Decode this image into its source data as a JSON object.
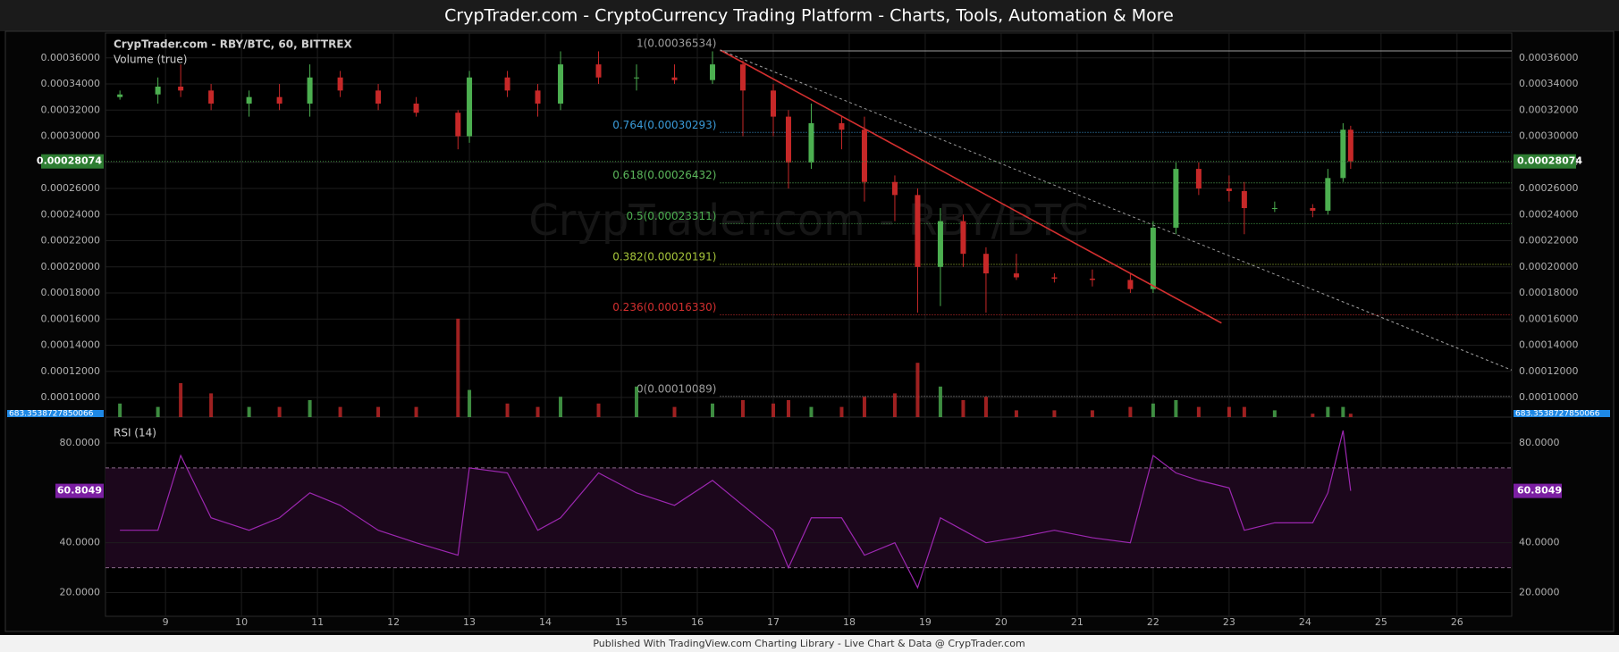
{
  "header": {
    "title": "CrypTrader.com  -  CryptoCurrency Trading Platform  -  Charts, Tools, Automation & More"
  },
  "footer": {
    "text": "Published With TradingView.com Charting Library - Live Chart & Data @ CrypTrader.com"
  },
  "chart_data": [
    {
      "type": "candlestick",
      "legend": [
        "CrypTrader.com - RBY/BTC, 60, BITTREX",
        "Volume (true)"
      ],
      "watermark": "CrypTrader.com - RBY/BTC",
      "ylim": [
        8.5e-05,
        0.000379
      ],
      "yticks": [
        {
          "value": 0.0001,
          "label": "0.00010000"
        },
        {
          "value": 0.00012,
          "label": "0.00012000"
        },
        {
          "value": 0.00014,
          "label": "0.00014000"
        },
        {
          "value": 0.00016,
          "label": "0.00016000"
        },
        {
          "value": 0.00018,
          "label": "0.00018000"
        },
        {
          "value": 0.0002,
          "label": "0.00020000"
        },
        {
          "value": 0.00022,
          "label": "0.00022000"
        },
        {
          "value": 0.00024,
          "label": "0.00024000"
        },
        {
          "value": 0.00026,
          "label": "0.00026000"
        },
        {
          "value": 0.00028,
          "label": "0.00028000"
        },
        {
          "value": 0.0003,
          "label": "0.00030000"
        },
        {
          "value": 0.00032,
          "label": "0.00032000"
        },
        {
          "value": 0.00034,
          "label": "0.00034000"
        },
        {
          "value": 0.00036,
          "label": "0.00036000"
        }
      ],
      "grid": true,
      "up_color": "#4caf50",
      "down_color": "#c62828",
      "candles": {
        "x": [
          8.4,
          8.9,
          9.2,
          9.6,
          10.1,
          10.5,
          10.9,
          11.3,
          11.8,
          12.3,
          12.85,
          13.0,
          13.5,
          13.9,
          14.2,
          14.7,
          15.2,
          15.7,
          16.2,
          16.6,
          17.0,
          17.2,
          17.5,
          17.9,
          18.2,
          18.6,
          18.9,
          19.2,
          19.5,
          19.8,
          20.2,
          20.7,
          21.2,
          21.7,
          22.0,
          22.3,
          22.6,
          23.0,
          23.2,
          23.6,
          24.1,
          24.3,
          24.5,
          24.6
        ],
        "open": [
          0.00033,
          0.000332,
          0.000338,
          0.000335,
          0.000325,
          0.00033,
          0.000325,
          0.000345,
          0.000335,
          0.000325,
          0.000318,
          0.0003,
          0.000345,
          0.000335,
          0.000325,
          0.000355,
          0.000345,
          0.000345,
          0.000343,
          0.000355,
          0.000335,
          0.000315,
          0.00028,
          0.00031,
          0.000305,
          0.000265,
          0.000255,
          0.0002,
          0.000235,
          0.00021,
          0.000195,
          0.000192,
          0.000191,
          0.00019,
          0.000183,
          0.00023,
          0.000275,
          0.00026,
          0.000258,
          0.000245,
          0.000245,
          0.000243,
          0.000268,
          0.000305
        ],
        "high": [
          0.000335,
          0.000345,
          0.000355,
          0.00034,
          0.000335,
          0.00034,
          0.000355,
          0.00035,
          0.00034,
          0.00033,
          0.00032,
          0.00035,
          0.00035,
          0.00034,
          0.000365,
          0.000365,
          0.000355,
          0.000355,
          0.000365,
          0.000358,
          0.00034,
          0.00032,
          0.000325,
          0.000315,
          0.000315,
          0.00027,
          0.00026,
          0.000245,
          0.00024,
          0.000215,
          0.00021,
          0.000195,
          0.000198,
          0.000195,
          0.000235,
          0.00028,
          0.00028,
          0.00027,
          0.000265,
          0.00025,
          0.000248,
          0.000275,
          0.00031,
          0.000308
        ],
        "low": [
          0.000328,
          0.000325,
          0.00033,
          0.00032,
          0.000315,
          0.00032,
          0.000315,
          0.00033,
          0.00032,
          0.000315,
          0.00029,
          0.000295,
          0.00033,
          0.000315,
          0.00032,
          0.00034,
          0.000335,
          0.00034,
          0.00034,
          0.0003,
          0.0003,
          0.00026,
          0.000275,
          0.00029,
          0.00025,
          0.000235,
          0.000165,
          0.00017,
          0.0002,
          0.000165,
          0.00019,
          0.000188,
          0.000185,
          0.00018,
          0.00018,
          0.000225,
          0.000255,
          0.00025,
          0.000225,
          0.000242,
          0.000238,
          0.00024,
          0.000265,
          0.000275
        ],
        "close": [
          0.000332,
          0.000338,
          0.000335,
          0.000325,
          0.00033,
          0.000325,
          0.000345,
          0.000335,
          0.000325,
          0.000318,
          0.0003,
          0.000345,
          0.000335,
          0.000325,
          0.000355,
          0.000345,
          0.000345,
          0.000343,
          0.000355,
          0.000335,
          0.000315,
          0.00028,
          0.00031,
          0.000305,
          0.000265,
          0.000255,
          0.0002,
          0.000235,
          0.00021,
          0.000195,
          0.000192,
          0.000191,
          0.00019,
          0.000183,
          0.00023,
          0.000275,
          0.00026,
          0.000258,
          0.000245,
          0.000245,
          0.000243,
          0.000268,
          0.000305,
          0.00028074
        ],
        "volume": [
          400,
          300,
          1000,
          700,
          300,
          300,
          500,
          300,
          300,
          300,
          2900,
          800,
          400,
          300,
          600,
          400,
          900,
          300,
          400,
          500,
          400,
          500,
          300,
          300,
          600,
          700,
          1600,
          900,
          500,
          600,
          200,
          200,
          200,
          300,
          400,
          500,
          300,
          300,
          300,
          200,
          100,
          300,
          300,
          100
        ]
      },
      "volume_label": "683.3538727850066",
      "current_price": {
        "value": 0.00028074,
        "label": "0.00028074"
      },
      "fib_x": 16.3,
      "fib_levels": [
        {
          "label": "1(0.00036534)",
          "value": 0.00036534,
          "color": "#9e9e9e"
        },
        {
          "label": "0.764(0.00030293)",
          "value": 0.00030293,
          "color": "#3a9bd9"
        },
        {
          "label": "0.618(0.00026432)",
          "value": 0.00026432,
          "color": "#5cb85c"
        },
        {
          "label": "0.5(0.00023311)",
          "value": 0.00023311,
          "color": "#4caf50"
        },
        {
          "label": "0.382(0.00020191)",
          "value": 0.00020191,
          "color": "#a5c43a"
        },
        {
          "label": "0.236(0.00016330)",
          "value": 0.0001633,
          "color": "#d32f2f"
        },
        {
          "label": "0(0.00010089)",
          "value": 0.00010089,
          "color": "#9e9e9e"
        }
      ],
      "trendlines": [
        {
          "color": "#d32f2f",
          "x": [
            16.3,
            22.9
          ],
          "y": [
            0.000366,
            0.000157
          ]
        },
        {
          "color": "#9e9e9e",
          "dashed": true,
          "x": [
            16.3,
            26.72
          ],
          "y": [
            0.000366,
            0.000121
          ]
        }
      ]
    },
    {
      "type": "line",
      "legend": [
        "RSI (14)"
      ],
      "color": "#9c27b0",
      "xlim": [
        8.21,
        26.72
      ],
      "xticks": [
        9,
        10,
        11,
        12,
        13,
        14,
        15,
        16,
        17,
        18,
        19,
        20,
        21,
        22,
        23,
        24,
        25,
        26
      ],
      "ylim": [
        10.5,
        90.4
      ],
      "yticks": [
        {
          "value": 20,
          "label": "20.0000"
        },
        {
          "value": 40,
          "label": "40.0000"
        },
        {
          "value": 80,
          "label": "80.0000"
        }
      ],
      "bands": [
        30,
        70
      ],
      "current": {
        "value": 60.8049,
        "label": "60.8049"
      },
      "x": [
        8.4,
        8.9,
        9.2,
        9.6,
        10.1,
        10.5,
        10.9,
        11.3,
        11.8,
        12.3,
        12.85,
        13.0,
        13.5,
        13.9,
        14.2,
        14.7,
        15.2,
        15.7,
        16.2,
        16.6,
        17.0,
        17.2,
        17.5,
        17.9,
        18.2,
        18.6,
        18.9,
        19.2,
        19.5,
        19.8,
        20.2,
        20.7,
        21.2,
        21.7,
        22.0,
        22.3,
        22.6,
        23.0,
        23.2,
        23.6,
        24.1,
        24.3,
        24.5,
        24.6
      ],
      "values": [
        45,
        45,
        75,
        50,
        45,
        50,
        60,
        55,
        45,
        40,
        35,
        70,
        68,
        45,
        50,
        68,
        60,
        55,
        65,
        55,
        45,
        30,
        50,
        50,
        35,
        40,
        22,
        50,
        45,
        40,
        42,
        45,
        42,
        40,
        75,
        68,
        65,
        62,
        45,
        48,
        48,
        60,
        85,
        60.8049
      ]
    }
  ]
}
